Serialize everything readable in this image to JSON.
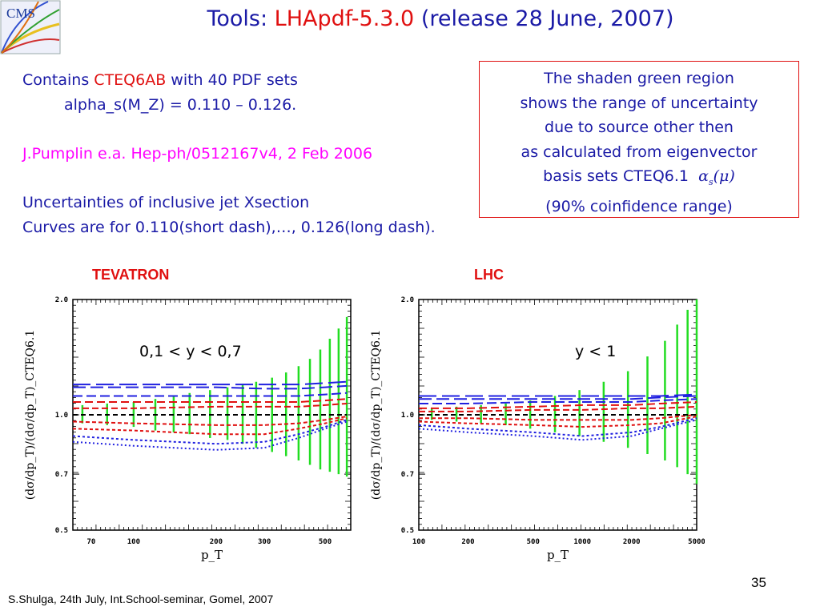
{
  "title": {
    "prefix": "Tools: ",
    "highlight": "LHApdf-5.3.0",
    "suffix": " (release 28 June, 2007)"
  },
  "logo": {
    "text": "CMS"
  },
  "info": {
    "line1_prefix": "Contains ",
    "line1_highlight": "CTEQ6AB",
    "line1_suffix": " with 40 PDF sets",
    "line2": "alpha_s(M_Z) = 0.110 – 0.126.",
    "reference": "J.Pumplin e.a. Hep-ph/0512167v4, 2 Feb 2006",
    "line4": "Uncertainties of inclusive jet Xsection",
    "line5": "Curves are for 0.110(short dash),…, 0.126(long dash)."
  },
  "note": {
    "line1": "The shaden green region",
    "line2": "shows the range of uncertainty",
    "line3": "due to source other then",
    "line4": "as calculated from eigenvector",
    "line5": "basis sets CTEQ6.1",
    "line6": "(90% coinfidence range)"
  },
  "panels": {
    "left_title": "TEVATRON",
    "right_title": "LHC",
    "left_region": "0,1 < y < 0,7",
    "right_region": "y < 1"
  },
  "colors": {
    "title_blue": "#1a1aa6",
    "accent_red": "#e01010",
    "reference_magenta": "#ff00ff",
    "band_green": "#22dd22"
  },
  "chart_data": [
    {
      "type": "line",
      "title": "TEVATRON",
      "annotation": "0,1 < y < 0,7",
      "xlabel": "p_T",
      "ylabel": "(dσ/dp_T)/(dσ/dp_T)_CTEQ6.1",
      "x_ticks": [
        "70",
        "100",
        "200",
        "300",
        "500"
      ],
      "y_ticks": [
        "0.5",
        "0.7",
        "1.0",
        "2.0"
      ],
      "ylim": [
        0.5,
        2.0
      ],
      "grid": false,
      "x": [
        60,
        100,
        200,
        300,
        400,
        500,
        600
      ],
      "series": [
        {
          "values": [
            0.85,
            0.83,
            0.81,
            0.82,
            0.87,
            0.92,
            0.96
          ]
        },
        {
          "values": [
            0.88,
            0.86,
            0.84,
            0.85,
            0.89,
            0.93,
            0.97
          ]
        },
        {
          "values": [
            0.92,
            0.91,
            0.89,
            0.89,
            0.92,
            0.95,
            0.98
          ]
        },
        {
          "values": [
            0.96,
            0.95,
            0.94,
            0.94,
            0.95,
            0.97,
            0.99
          ]
        },
        {
          "values": [
            1.0,
            1.0,
            1.0,
            1.0,
            1.0,
            1.0,
            1.0
          ]
        },
        {
          "values": [
            1.04,
            1.04,
            1.05,
            1.05,
            1.05,
            1.06,
            1.07
          ]
        },
        {
          "values": [
            1.08,
            1.08,
            1.08,
            1.08,
            1.08,
            1.09,
            1.1
          ]
        },
        {
          "values": [
            1.12,
            1.12,
            1.12,
            1.12,
            1.12,
            1.13,
            1.14
          ]
        },
        {
          "values": [
            1.18,
            1.18,
            1.18,
            1.17,
            1.17,
            1.18,
            1.19
          ]
        },
        {
          "values": [
            1.2,
            1.2,
            1.2,
            1.2,
            1.2,
            1.21,
            1.22
          ]
        }
      ],
      "uncertainty": {
        "x": [
          65,
          80,
          100,
          120,
          140,
          160,
          190,
          220,
          250,
          280,
          320,
          360,
          400,
          440,
          480,
          520,
          560,
          600
        ],
        "low": [
          0.95,
          0.94,
          0.93,
          0.91,
          0.9,
          0.89,
          0.87,
          0.86,
          0.84,
          0.82,
          0.8,
          0.78,
          0.76,
          0.74,
          0.72,
          0.71,
          0.7,
          0.69
        ],
        "high": [
          1.06,
          1.07,
          1.08,
          1.1,
          1.12,
          1.14,
          1.16,
          1.18,
          1.2,
          1.22,
          1.25,
          1.29,
          1.34,
          1.4,
          1.48,
          1.58,
          1.68,
          1.8
        ]
      }
    },
    {
      "type": "line",
      "title": "LHC",
      "annotation": "y < 1",
      "xlabel": "p_T",
      "ylabel": "(dσ/dp_T)/(dσ/dp_T)_CTEQ6.1",
      "x_ticks": [
        "100",
        "200",
        "500",
        "1000",
        "2000",
        "5000"
      ],
      "y_ticks": [
        "0.5",
        "0.7",
        "1.0",
        "2.0"
      ],
      "ylim": [
        0.5,
        2.0
      ],
      "grid": false,
      "x": [
        100,
        200,
        500,
        1000,
        2000,
        3000,
        5000
      ],
      "series": [
        {
          "values": [
            0.92,
            0.9,
            0.88,
            0.86,
            0.88,
            0.92,
            0.97
          ]
        },
        {
          "values": [
            0.94,
            0.92,
            0.9,
            0.88,
            0.9,
            0.93,
            0.98
          ]
        },
        {
          "values": [
            0.96,
            0.95,
            0.94,
            0.93,
            0.94,
            0.95,
            0.99
          ]
        },
        {
          "values": [
            0.98,
            0.98,
            0.97,
            0.97,
            0.97,
            0.98,
            1.0
          ]
        },
        {
          "values": [
            1.0,
            1.0,
            1.0,
            1.0,
            1.0,
            1.0,
            1.0
          ]
        },
        {
          "values": [
            1.02,
            1.02,
            1.03,
            1.03,
            1.04,
            1.04,
            1.05
          ]
        },
        {
          "values": [
            1.04,
            1.04,
            1.05,
            1.06,
            1.06,
            1.07,
            1.08
          ]
        },
        {
          "values": [
            1.07,
            1.07,
            1.08,
            1.08,
            1.08,
            1.09,
            1.1
          ]
        },
        {
          "values": [
            1.1,
            1.1,
            1.1,
            1.1,
            1.1,
            1.11,
            1.12
          ]
        },
        {
          "values": [
            1.12,
            1.12,
            1.12,
            1.12,
            1.12,
            1.12,
            1.13
          ]
        }
      ],
      "uncertainty": {
        "x": [
          120,
          170,
          240,
          340,
          480,
          680,
          960,
          1350,
          1900,
          2500,
          3200,
          3800,
          4400,
          5000
        ],
        "low": [
          0.97,
          0.96,
          0.95,
          0.94,
          0.92,
          0.9,
          0.88,
          0.85,
          0.82,
          0.79,
          0.76,
          0.73,
          0.7,
          0.66
        ],
        "high": [
          1.04,
          1.05,
          1.06,
          1.07,
          1.09,
          1.12,
          1.16,
          1.22,
          1.3,
          1.42,
          1.56,
          1.72,
          1.88,
          2.0
        ]
      }
    }
  ],
  "footer": {
    "author": "S.Shulga, 24th July, Int.School-seminar, Gomel, 2007",
    "page": "35"
  }
}
